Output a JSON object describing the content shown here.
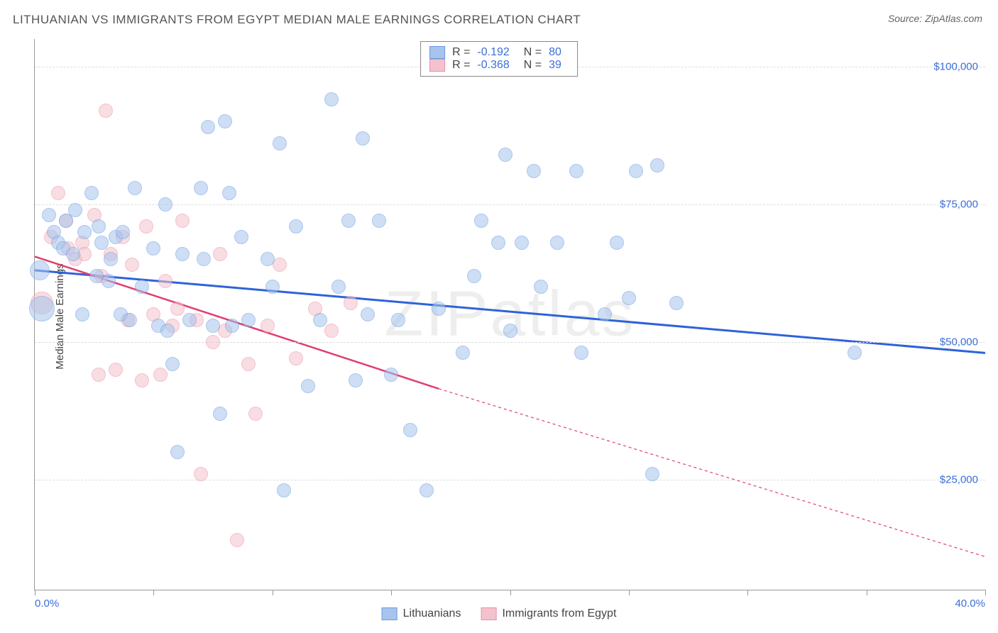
{
  "title": "LITHUANIAN VS IMMIGRANTS FROM EGYPT MEDIAN MALE EARNINGS CORRELATION CHART",
  "source": "Source: ZipAtlas.com",
  "y_axis_label": "Median Male Earnings",
  "watermark": "ZIPatlas",
  "chart": {
    "type": "scatter",
    "xlim": [
      0,
      40
    ],
    "ylim": [
      5000,
      105000
    ],
    "y_gridlines": [
      25000,
      50000,
      75000,
      100000
    ],
    "y_tick_labels": [
      "$25,000",
      "$50,000",
      "$75,000",
      "$100,000"
    ],
    "x_ticks": [
      0,
      5,
      10,
      15,
      20,
      25,
      30,
      35,
      40
    ],
    "x_left_label": "0.0%",
    "x_right_label": "40.0%",
    "grid_color": "#dddddd",
    "axis_color": "#999999",
    "background": "#ffffff",
    "marker_radius": 10,
    "marker_opacity": 0.55,
    "series": [
      {
        "name": "Lithuanians",
        "color_fill": "#a6c4ed",
        "color_stroke": "#6a9be0",
        "R": "-0.192",
        "N": "80",
        "trend": {
          "x1": 0,
          "y1": 63000,
          "x2": 40,
          "y2": 48000,
          "color": "#2f62d9",
          "width": 3,
          "dash": "none"
        },
        "points": [
          {
            "x": 0.2,
            "y": 63000,
            "r": 14
          },
          {
            "x": 0.3,
            "y": 56000,
            "r": 18
          },
          {
            "x": 0.6,
            "y": 73000
          },
          {
            "x": 0.8,
            "y": 70000
          },
          {
            "x": 1.0,
            "y": 68000
          },
          {
            "x": 1.2,
            "y": 67000
          },
          {
            "x": 1.3,
            "y": 72000
          },
          {
            "x": 1.6,
            "y": 66000
          },
          {
            "x": 1.7,
            "y": 74000
          },
          {
            "x": 2.1,
            "y": 70000
          },
          {
            "x": 2.0,
            "y": 55000
          },
          {
            "x": 2.4,
            "y": 77000
          },
          {
            "x": 2.6,
            "y": 62000
          },
          {
            "x": 2.8,
            "y": 68000
          },
          {
            "x": 2.7,
            "y": 71000
          },
          {
            "x": 3.1,
            "y": 61000
          },
          {
            "x": 3.2,
            "y": 65000
          },
          {
            "x": 3.4,
            "y": 69000
          },
          {
            "x": 3.6,
            "y": 55000
          },
          {
            "x": 3.7,
            "y": 70000
          },
          {
            "x": 4.0,
            "y": 54000
          },
          {
            "x": 4.2,
            "y": 78000
          },
          {
            "x": 4.5,
            "y": 60000
          },
          {
            "x": 5.0,
            "y": 67000
          },
          {
            "x": 5.2,
            "y": 53000
          },
          {
            "x": 5.5,
            "y": 75000
          },
          {
            "x": 5.6,
            "y": 52000
          },
          {
            "x": 5.8,
            "y": 46000
          },
          {
            "x": 6.0,
            "y": 30000
          },
          {
            "x": 6.2,
            "y": 66000
          },
          {
            "x": 6.5,
            "y": 54000
          },
          {
            "x": 7.0,
            "y": 78000
          },
          {
            "x": 7.1,
            "y": 65000
          },
          {
            "x": 7.3,
            "y": 89000
          },
          {
            "x": 7.5,
            "y": 53000
          },
          {
            "x": 7.8,
            "y": 37000
          },
          {
            "x": 8.0,
            "y": 90000
          },
          {
            "x": 8.2,
            "y": 77000
          },
          {
            "x": 8.3,
            "y": 53000
          },
          {
            "x": 8.7,
            "y": 69000
          },
          {
            "x": 9.0,
            "y": 54000
          },
          {
            "x": 9.8,
            "y": 65000
          },
          {
            "x": 10.0,
            "y": 60000
          },
          {
            "x": 10.3,
            "y": 86000
          },
          {
            "x": 10.5,
            "y": 23000
          },
          {
            "x": 11.0,
            "y": 71000
          },
          {
            "x": 11.5,
            "y": 42000
          },
          {
            "x": 12.0,
            "y": 54000
          },
          {
            "x": 12.5,
            "y": 94000
          },
          {
            "x": 12.8,
            "y": 60000
          },
          {
            "x": 13.2,
            "y": 72000
          },
          {
            "x": 13.5,
            "y": 43000
          },
          {
            "x": 13.8,
            "y": 87000
          },
          {
            "x": 14.0,
            "y": 55000
          },
          {
            "x": 14.5,
            "y": 72000
          },
          {
            "x": 15.0,
            "y": 44000
          },
          {
            "x": 15.3,
            "y": 54000
          },
          {
            "x": 15.8,
            "y": 34000
          },
          {
            "x": 16.5,
            "y": 23000
          },
          {
            "x": 17.0,
            "y": 56000
          },
          {
            "x": 18.0,
            "y": 48000
          },
          {
            "x": 18.5,
            "y": 62000
          },
          {
            "x": 18.8,
            "y": 72000
          },
          {
            "x": 19.5,
            "y": 68000
          },
          {
            "x": 19.8,
            "y": 84000
          },
          {
            "x": 20.0,
            "y": 52000
          },
          {
            "x": 20.5,
            "y": 68000
          },
          {
            "x": 21.0,
            "y": 81000
          },
          {
            "x": 21.3,
            "y": 60000
          },
          {
            "x": 22.0,
            "y": 68000
          },
          {
            "x": 22.8,
            "y": 81000
          },
          {
            "x": 24.0,
            "y": 55000
          },
          {
            "x": 24.5,
            "y": 68000
          },
          {
            "x": 25.0,
            "y": 58000
          },
          {
            "x": 25.3,
            "y": 81000
          },
          {
            "x": 26.0,
            "y": 26000
          },
          {
            "x": 26.2,
            "y": 82000
          },
          {
            "x": 27.0,
            "y": 57000
          },
          {
            "x": 34.5,
            "y": 48000
          },
          {
            "x": 23.0,
            "y": 48000
          }
        ]
      },
      {
        "name": "Immigrants from Egypt",
        "color_fill": "#f4c2cd",
        "color_stroke": "#ec8fa4",
        "R": "-0.368",
        "N": "39",
        "trend": {
          "x1": 0,
          "y1": 65500,
          "x2": 17,
          "y2": 41500,
          "color": "#e23e6d",
          "width": 2.5,
          "dash": "none",
          "ext_x2": 40,
          "ext_y2": 11000,
          "ext_dash": "4,4"
        },
        "points": [
          {
            "x": 0.3,
            "y": 57000,
            "r": 16
          },
          {
            "x": 0.7,
            "y": 69000
          },
          {
            "x": 1.0,
            "y": 77000
          },
          {
            "x": 1.3,
            "y": 72000
          },
          {
            "x": 1.4,
            "y": 67000
          },
          {
            "x": 1.7,
            "y": 65000
          },
          {
            "x": 2.0,
            "y": 68000
          },
          {
            "x": 2.1,
            "y": 66000
          },
          {
            "x": 2.5,
            "y": 73000
          },
          {
            "x": 2.7,
            "y": 44000
          },
          {
            "x": 2.8,
            "y": 62000
          },
          {
            "x": 3.0,
            "y": 92000
          },
          {
            "x": 3.2,
            "y": 66000
          },
          {
            "x": 3.4,
            "y": 45000
          },
          {
            "x": 3.7,
            "y": 69000
          },
          {
            "x": 3.9,
            "y": 54000
          },
          {
            "x": 4.1,
            "y": 64000
          },
          {
            "x": 4.5,
            "y": 43000
          },
          {
            "x": 4.7,
            "y": 71000
          },
          {
            "x": 5.0,
            "y": 55000
          },
          {
            "x": 5.3,
            "y": 44000
          },
          {
            "x": 5.5,
            "y": 61000
          },
          {
            "x": 5.8,
            "y": 53000
          },
          {
            "x": 6.0,
            "y": 56000
          },
          {
            "x": 6.2,
            "y": 72000
          },
          {
            "x": 6.8,
            "y": 54000
          },
          {
            "x": 7.0,
            "y": 26000
          },
          {
            "x": 7.5,
            "y": 50000
          },
          {
            "x": 7.8,
            "y": 66000
          },
          {
            "x": 8.0,
            "y": 52000
          },
          {
            "x": 8.5,
            "y": 14000
          },
          {
            "x": 9.0,
            "y": 46000
          },
          {
            "x": 9.3,
            "y": 37000
          },
          {
            "x": 9.8,
            "y": 53000
          },
          {
            "x": 10.3,
            "y": 64000
          },
          {
            "x": 11.0,
            "y": 47000
          },
          {
            "x": 11.8,
            "y": 56000
          },
          {
            "x": 12.5,
            "y": 52000
          },
          {
            "x": 13.3,
            "y": 57000
          }
        ]
      }
    ]
  },
  "stats_legend_labels": {
    "R_label": "R =",
    "N_label": "N ="
  }
}
